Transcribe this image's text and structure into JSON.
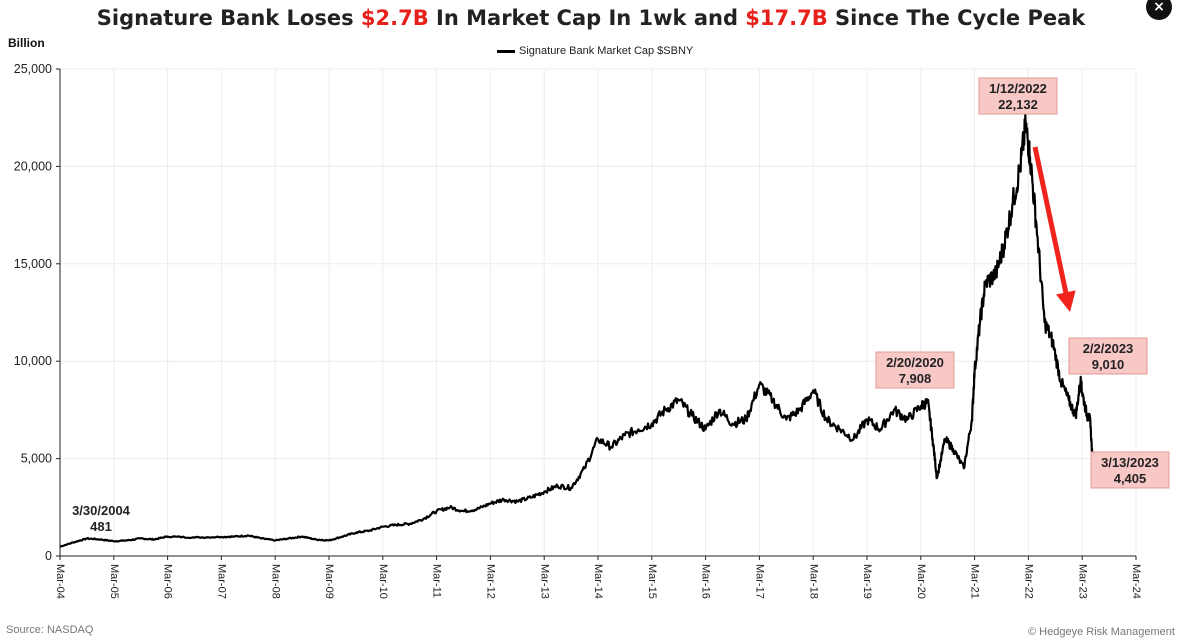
{
  "title": {
    "part1": "Signature Bank Loses ",
    "highlight1": "$2.7B",
    "part2": " In Market Cap In 1wk and ",
    "highlight2": "$17.7B",
    "part3": " Since The Cycle Peak",
    "highlight_color": "#e8201c"
  },
  "close_icon": "×",
  "unit_label": "Billion",
  "source": "Source: NASDAQ",
  "credit": "© Hedgeye Risk Management",
  "chart_data": {
    "type": "line",
    "ylim": [
      0,
      25000
    ],
    "yticks": [
      0,
      5000,
      10000,
      15000,
      20000,
      25000
    ],
    "ytick_labels": [
      "0",
      "5,000",
      "10,000",
      "15,000",
      "20,000",
      "25,000"
    ],
    "xtick_labels": [
      "Mar-04",
      "Mar-05",
      "Mar-06",
      "Mar-07",
      "Mar-08",
      "Mar-09",
      "Mar-10",
      "Mar-11",
      "Mar-12",
      "Mar-13",
      "Mar-14",
      "Mar-15",
      "Mar-16",
      "Mar-17",
      "Mar-18",
      "Mar-19",
      "Mar-20",
      "Mar-21",
      "Mar-22",
      "Mar-23",
      "Mar-24"
    ],
    "xlim": [
      2004.0,
      2024.0
    ],
    "grid": true,
    "legend_position": "top-center",
    "series": [
      {
        "name": "Signature Bank Market Cap $SBNY",
        "color": "#000000",
        "x": [
          2004.0,
          2004.25,
          2004.5,
          2004.75,
          2005.0,
          2005.25,
          2005.5,
          2005.75,
          2006.0,
          2006.5,
          2007.0,
          2007.25,
          2007.5,
          2007.75,
          2008.0,
          2008.25,
          2008.5,
          2008.75,
          2009.0,
          2009.25,
          2009.5,
          2009.75,
          2010.0,
          2010.25,
          2010.5,
          2010.75,
          2011.0,
          2011.25,
          2011.5,
          2011.75,
          2012.0,
          2012.25,
          2012.5,
          2012.75,
          2013.0,
          2013.25,
          2013.5,
          2013.75,
          2014.0,
          2014.25,
          2014.5,
          2014.75,
          2015.0,
          2015.25,
          2015.5,
          2015.75,
          2016.0,
          2016.25,
          2016.5,
          2016.75,
          2017.0,
          2017.25,
          2017.5,
          2017.75,
          2018.0,
          2018.25,
          2018.5,
          2018.75,
          2019.0,
          2019.25,
          2019.5,
          2019.75,
          2020.0,
          2020.13,
          2020.22,
          2020.3,
          2020.45,
          2020.6,
          2020.8,
          2020.95,
          2021.0,
          2021.1,
          2021.2,
          2021.4,
          2021.55,
          2021.7,
          2021.85,
          2021.95,
          2022.03,
          2022.15,
          2022.3,
          2022.45,
          2022.6,
          2022.75,
          2022.88,
          2022.97,
          2023.0,
          2023.09,
          2023.15,
          2023.2
        ],
        "values": [
          481,
          700,
          900,
          850,
          760,
          800,
          900,
          850,
          1000,
          950,
          980,
          1000,
          1050,
          900,
          800,
          900,
          1000,
          850,
          800,
          1000,
          1200,
          1300,
          1500,
          1600,
          1650,
          1900,
          2300,
          2500,
          2300,
          2400,
          2700,
          2900,
          2800,
          3000,
          3300,
          3600,
          3500,
          4500,
          6000,
          5600,
          6200,
          6500,
          6800,
          7500,
          8000,
          7200,
          6500,
          7500,
          6800,
          7000,
          8800,
          8000,
          7000,
          7500,
          8500,
          7000,
          6500,
          6000,
          7000,
          6500,
          7500,
          7000,
          7700,
          7908,
          6000,
          4000,
          6000,
          5500,
          4500,
          7000,
          9500,
          12000,
          14000,
          14500,
          16000,
          18000,
          20000,
          22132,
          20500,
          17000,
          12000,
          11000,
          9000,
          8000,
          7200,
          9010,
          8400,
          7200,
          7000,
          4405
        ]
      }
    ],
    "annotations": [
      {
        "date": "3/30/2004",
        "value": "481"
      },
      {
        "date": "2/20/2020",
        "value": "7,908"
      },
      {
        "date": "1/12/2022",
        "value": "22,132"
      },
      {
        "date": "2/2/2023",
        "value": "9,010"
      },
      {
        "date": "3/13/2023",
        "value": "4,405"
      }
    ],
    "annotation_fill": "#f7c8c6",
    "arrow_color": "#f0241c"
  }
}
